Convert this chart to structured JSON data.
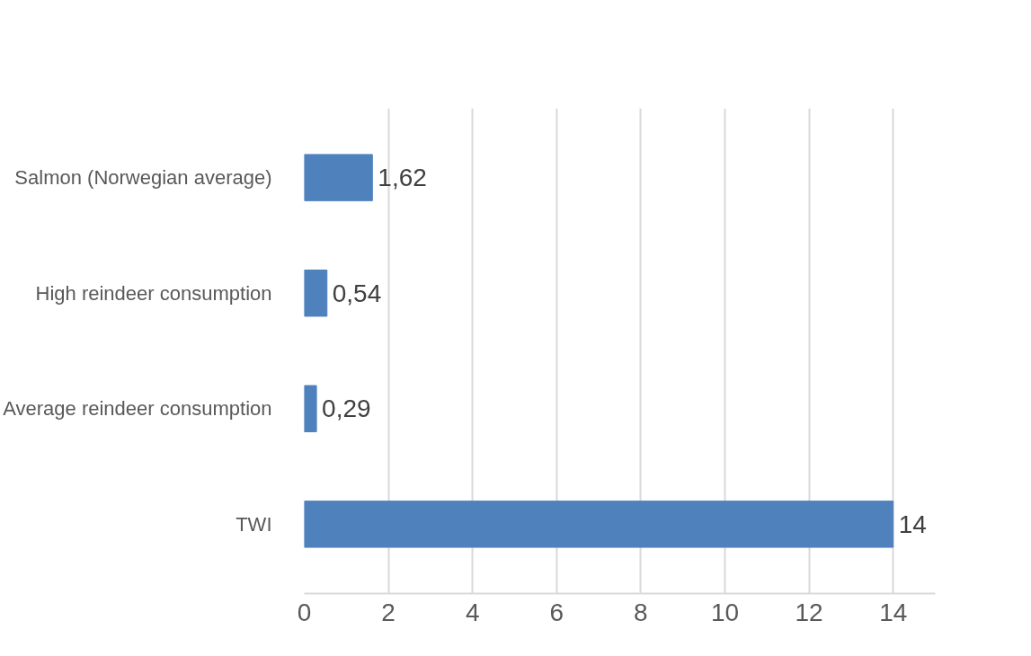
{
  "chart_data": {
    "type": "bar",
    "orientation": "horizontal",
    "categories": [
      "Salmon (Norwegian average)",
      "High reindeer consumption",
      "Average reindeer consumption",
      "TWI"
    ],
    "values": [
      1.62,
      0.54,
      0.29,
      14
    ],
    "value_labels": [
      "1,62",
      "0,54",
      "0,29",
      "14"
    ],
    "color": "#4f81bd",
    "xlim": [
      0,
      15
    ],
    "xticks": [
      0,
      2,
      4,
      6,
      8,
      10,
      12,
      14
    ],
    "grid": "x"
  }
}
